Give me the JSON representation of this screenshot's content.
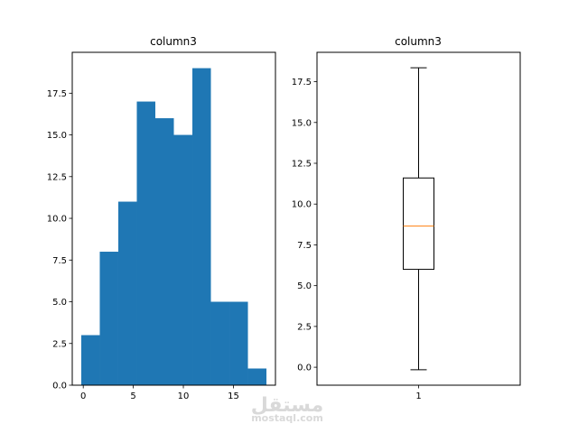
{
  "chart_data": [
    {
      "type": "bar",
      "subtype": "histogram",
      "title": "column3",
      "bins": [
        {
          "x0": -0.2,
          "x1": 1.65,
          "count": 3
        },
        {
          "x0": 1.65,
          "x1": 3.5,
          "count": 8
        },
        {
          "x0": 3.5,
          "x1": 5.35,
          "count": 11
        },
        {
          "x0": 5.35,
          "x1": 7.2,
          "count": 17
        },
        {
          "x0": 7.2,
          "x1": 9.05,
          "count": 16
        },
        {
          "x0": 9.05,
          "x1": 10.9,
          "count": 15
        },
        {
          "x0": 10.9,
          "x1": 12.75,
          "count": 19
        },
        {
          "x0": 12.75,
          "x1": 14.6,
          "count": 5
        },
        {
          "x0": 14.6,
          "x1": 16.45,
          "count": 5
        },
        {
          "x0": 16.45,
          "x1": 18.3,
          "count": 1
        }
      ],
      "xlim": [
        -1.1,
        19.2
      ],
      "ylim": [
        0,
        19.95
      ],
      "xticks": [
        0,
        5,
        10,
        15
      ],
      "yticks": [
        0.0,
        2.5,
        5.0,
        7.5,
        10.0,
        12.5,
        15.0,
        17.5
      ],
      "color": "#1f77b4",
      "grid": false
    },
    {
      "type": "box",
      "title": "column3",
      "categories": [
        "1"
      ],
      "box": {
        "whislo": -0.15,
        "q1": 6.0,
        "med": 8.65,
        "q3": 11.6,
        "whishi": 18.35
      },
      "ylim": [
        -1.1,
        19.3
      ],
      "yticks": [
        0.0,
        2.5,
        5.0,
        7.5,
        10.0,
        12.5,
        15.0,
        17.5
      ],
      "median_color": "#ff7f0e",
      "grid": false
    }
  ],
  "watermark": {
    "arabic": "مستقل",
    "latin": "mostaql.com"
  }
}
